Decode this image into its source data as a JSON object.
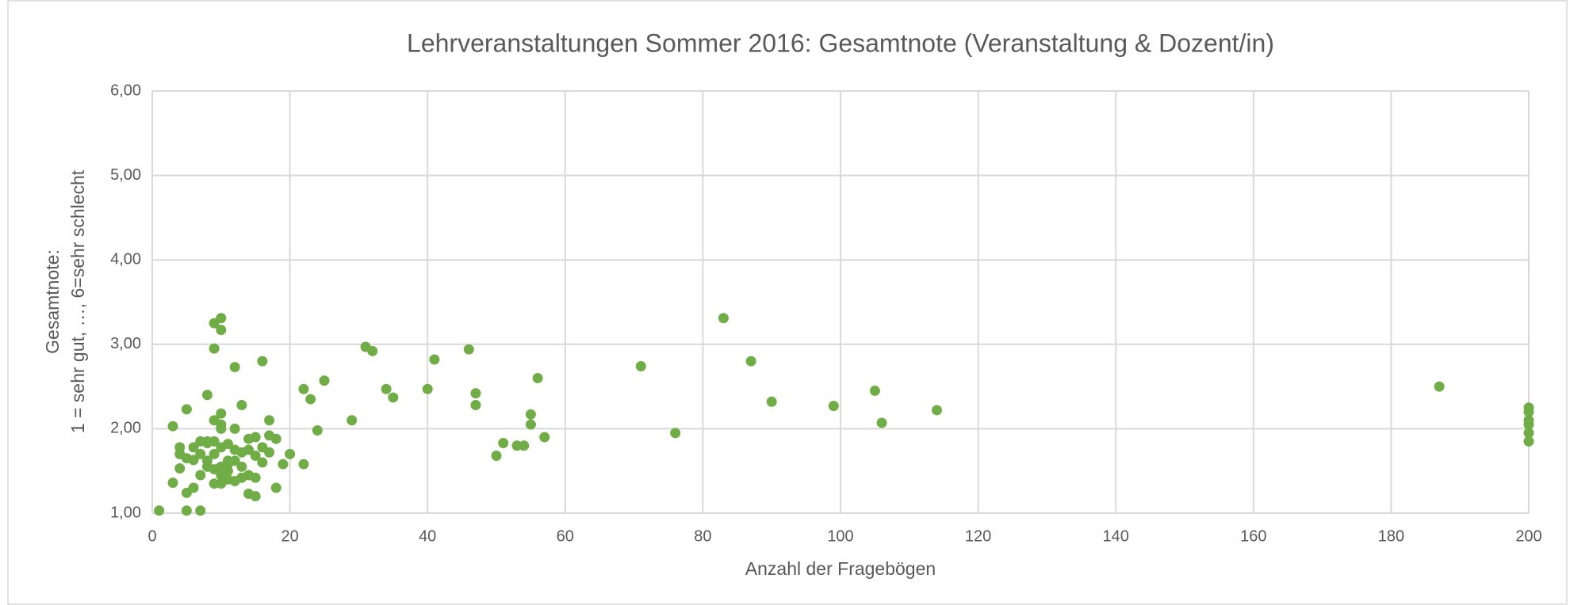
{
  "chart_data": {
    "type": "scatter",
    "title": "Lehrveranstaltungen Sommer 2016: Gesamtnote (Veranstaltung & Dozent/in)",
    "x_label": "Anzahl der Fragebögen",
    "y_label": [
      "Gesamtnote:",
      "1 = sehr gut, …, 6=sehr schlecht"
    ],
    "color": "#70ad47",
    "grid": true,
    "xlim": [
      0,
      200
    ],
    "xticks": [
      0,
      20,
      40,
      60,
      80,
      100,
      120,
      140,
      160,
      180,
      200
    ],
    "ylim": [
      1,
      6
    ],
    "yticks": [
      {
        "value": 1,
        "label": "1,00"
      },
      {
        "value": 2,
        "label": "2,00"
      },
      {
        "value": 3,
        "label": "3,00"
      },
      {
        "value": 4,
        "label": "4,00"
      },
      {
        "value": 5,
        "label": "5,00"
      },
      {
        "value": 6,
        "label": "6,00"
      }
    ],
    "x": [
      1,
      3,
      3,
      4,
      4,
      4,
      5,
      5,
      5,
      5,
      6,
      6,
      6,
      7,
      7,
      7,
      7,
      8,
      8,
      8,
      8,
      9,
      9,
      9,
      9,
      10,
      10,
      10,
      10,
      10,
      10,
      11,
      11,
      11,
      11,
      11,
      12,
      12,
      12,
      12,
      13,
      13,
      13,
      14,
      14,
      14,
      14,
      15,
      15,
      15,
      15,
      16,
      16,
      17,
      17,
      18,
      9,
      10,
      10,
      9,
      12,
      16,
      8,
      13,
      9,
      10,
      17,
      22,
      23,
      25,
      24,
      22,
      20,
      19,
      18,
      29,
      31,
      32,
      34,
      35,
      40,
      41,
      46,
      47,
      47,
      50,
      51,
      53,
      54,
      55,
      55,
      56,
      57,
      71,
      76,
      83,
      87,
      90,
      99,
      105,
      106,
      114,
      187,
      200,
      200,
      200,
      200,
      200,
      200
    ],
    "values": [
      1.03,
      2.03,
      1.36,
      1.78,
      1.7,
      1.53,
      2.23,
      1.65,
      1.24,
      1.03,
      1.78,
      1.63,
      1.3,
      1.85,
      1.7,
      1.45,
      1.03,
      1.83,
      1.62,
      1.55,
      1.85,
      1.35,
      1.52,
      1.7,
      1.85,
      2.0,
      1.78,
      1.55,
      1.45,
      1.35,
      2.05,
      1.82,
      1.62,
      1.5,
      1.4,
      1.58,
      1.75,
      1.62,
      1.38,
      2.0,
      1.72,
      1.55,
      1.42,
      1.88,
      1.75,
      1.45,
      1.23,
      1.9,
      1.68,
      1.42,
      1.2,
      1.78,
      1.6,
      1.92,
      1.72,
      1.88,
      3.25,
      3.31,
      3.17,
      2.95,
      2.73,
      2.8,
      2.4,
      2.28,
      2.1,
      2.18,
      2.1,
      2.47,
      2.35,
      2.57,
      1.98,
      1.58,
      1.7,
      1.58,
      1.3,
      2.1,
      2.97,
      2.92,
      2.47,
      2.37,
      2.47,
      2.82,
      2.94,
      2.42,
      2.28,
      1.68,
      1.83,
      1.8,
      1.8,
      2.17,
      2.05,
      2.6,
      1.9,
      2.74,
      1.95,
      3.31,
      2.8,
      2.32,
      2.27,
      2.45,
      2.07,
      2.22,
      2.5,
      2.25,
      2.2,
      2.1,
      2.05,
      1.95,
      1.85
    ]
  }
}
